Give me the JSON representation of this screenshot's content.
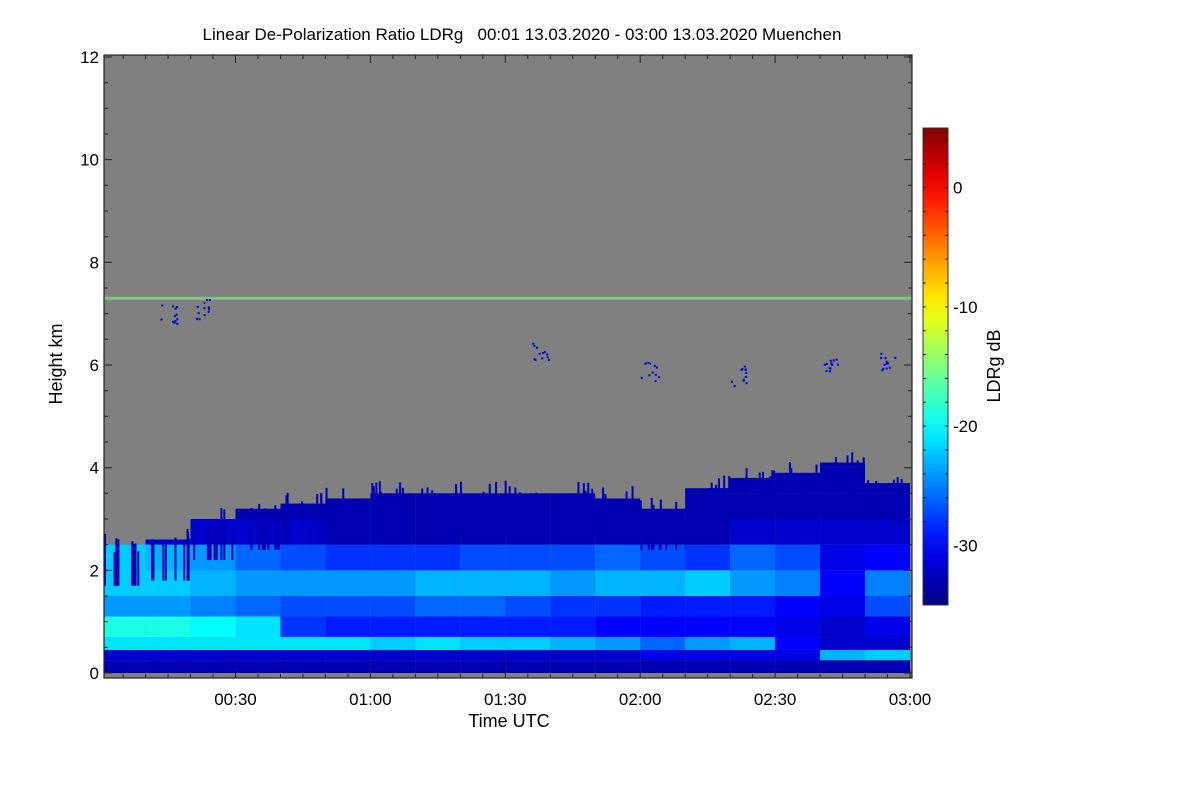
{
  "chart_data": {
    "type": "heatmap",
    "title": "Linear De-Polarization Ratio LDRg   00:01 13.03.2020 - 03:00 13.03.2020 Muenchen",
    "xlabel": "Time UTC",
    "ylabel": "Height km",
    "colorbar_label": "LDRg dB",
    "xlim_minutes": [
      0,
      180
    ],
    "ylim": [
      0,
      12
    ],
    "clim": [
      -35,
      5
    ],
    "colormap": "jet",
    "missing_color": "#808080",
    "x_ticks": [
      {
        "minute": 30,
        "label": "00:30"
      },
      {
        "minute": 60,
        "label": "01:00"
      },
      {
        "minute": 90,
        "label": "01:30"
      },
      {
        "minute": 120,
        "label": "02:00"
      },
      {
        "minute": 150,
        "label": "02:30"
      },
      {
        "minute": 180,
        "label": "03:00"
      }
    ],
    "y_ticks": [
      {
        "value": 0,
        "label": "0"
      },
      {
        "value": 2,
        "label": "2"
      },
      {
        "value": 4,
        "label": "4"
      },
      {
        "value": 6,
        "label": "6"
      },
      {
        "value": 8,
        "label": "8"
      },
      {
        "value": 10,
        "label": "10"
      },
      {
        "value": 12,
        "label": "12"
      }
    ],
    "colorbar_ticks": [
      {
        "value": 0,
        "label": "0"
      },
      {
        "value": -10,
        "label": "-10"
      },
      {
        "value": -20,
        "label": "-20"
      },
      {
        "value": -30,
        "label": "-30"
      }
    ],
    "time_bin_minutes": 10,
    "height_edges_km": [
      0,
      0.25,
      0.45,
      0.7,
      1.1,
      1.5,
      2.0,
      2.5,
      3.0,
      3.5,
      4.0,
      4.3
    ],
    "cloud_top_km": [
      2.5,
      2.6,
      3.0,
      3.2,
      3.3,
      3.4,
      3.5,
      3.5,
      3.5,
      3.5,
      3.5,
      3.4,
      3.2,
      3.6,
      3.8,
      3.9,
      4.1,
      3.7
    ],
    "ldr_db": [
      [
        -33,
        -32,
        -21,
        -19,
        -24,
        -22,
        -22,
        -32,
        -33,
        -33,
        -33
      ],
      [
        -33,
        -32,
        -21,
        -19,
        -24,
        -22,
        -23,
        -32,
        -33,
        -33,
        -33
      ],
      [
        -33,
        -32,
        -21,
        -20,
        -25,
        -23,
        -24,
        -32,
        -33,
        -33,
        -33
      ],
      [
        -33,
        -32,
        -21,
        -21,
        -26,
        -24,
        -26,
        -32,
        -33,
        -33,
        -33
      ],
      [
        -33,
        -32,
        -21,
        -28,
        -27,
        -24,
        -27,
        -32,
        -33,
        -33,
        -33
      ],
      [
        -33,
        -32,
        -21,
        -29,
        -27,
        -24,
        -28,
        -33,
        -33,
        -33,
        -33
      ],
      [
        -33,
        -32,
        -22,
        -29,
        -27,
        -24,
        -28,
        -33,
        -33,
        -33,
        -33
      ],
      [
        -33,
        -32,
        -21,
        -29,
        -26,
        -23,
        -28,
        -33,
        -33,
        -33,
        -33
      ],
      [
        -33,
        -32,
        -22,
        -29,
        -26,
        -23,
        -27,
        -33,
        -33,
        -33,
        -33
      ],
      [
        -33,
        -32,
        -22,
        -29,
        -27,
        -23,
        -27,
        -33,
        -33,
        -33,
        -33
      ],
      [
        -33,
        -32,
        -23,
        -29,
        -28,
        -24,
        -27,
        -33,
        -33,
        -33,
        -33
      ],
      [
        -33,
        -32,
        -24,
        -30,
        -28,
        -23,
        -26,
        -33,
        -33,
        -33,
        -33
      ],
      [
        -33,
        -31,
        -26,
        -30,
        -29,
        -23,
        -27,
        -33,
        -33,
        -33,
        -33
      ],
      [
        -33,
        -31,
        -24,
        -30,
        -29,
        -22,
        -28,
        -33,
        -33,
        -33,
        -33
      ],
      [
        -33,
        -31,
        -23,
        -30,
        -29,
        -24,
        -26,
        -32,
        -33,
        -33,
        -33
      ],
      [
        -33,
        -31,
        -30,
        -31,
        -30,
        -25,
        -27,
        -32,
        -33,
        -33,
        -33
      ],
      [
        -33,
        -23,
        -32,
        -32,
        -31,
        -30,
        -31,
        -32,
        -33,
        -33,
        -33
      ],
      [
        -33,
        -22,
        -32,
        -31,
        -27,
        -25,
        -30,
        -32,
        -33,
        -33,
        -33
      ]
    ],
    "thin_layer": {
      "height_km": 7.3,
      "ldr_db": -15
    },
    "ice_patches": [
      {
        "minute": 15,
        "height_km": 7.0,
        "ldr_db": -32
      },
      {
        "minute": 23,
        "height_km": 7.1,
        "ldr_db": -32
      },
      {
        "minute": 98,
        "height_km": 6.3,
        "ldr_db": -32
      },
      {
        "minute": 122,
        "height_km": 5.9,
        "ldr_db": -31
      },
      {
        "minute": 142,
        "height_km": 5.8,
        "ldr_db": -32
      },
      {
        "minute": 162,
        "height_km": 6.0,
        "ldr_db": -31
      },
      {
        "minute": 175,
        "height_km": 6.1,
        "ldr_db": -31
      }
    ]
  }
}
